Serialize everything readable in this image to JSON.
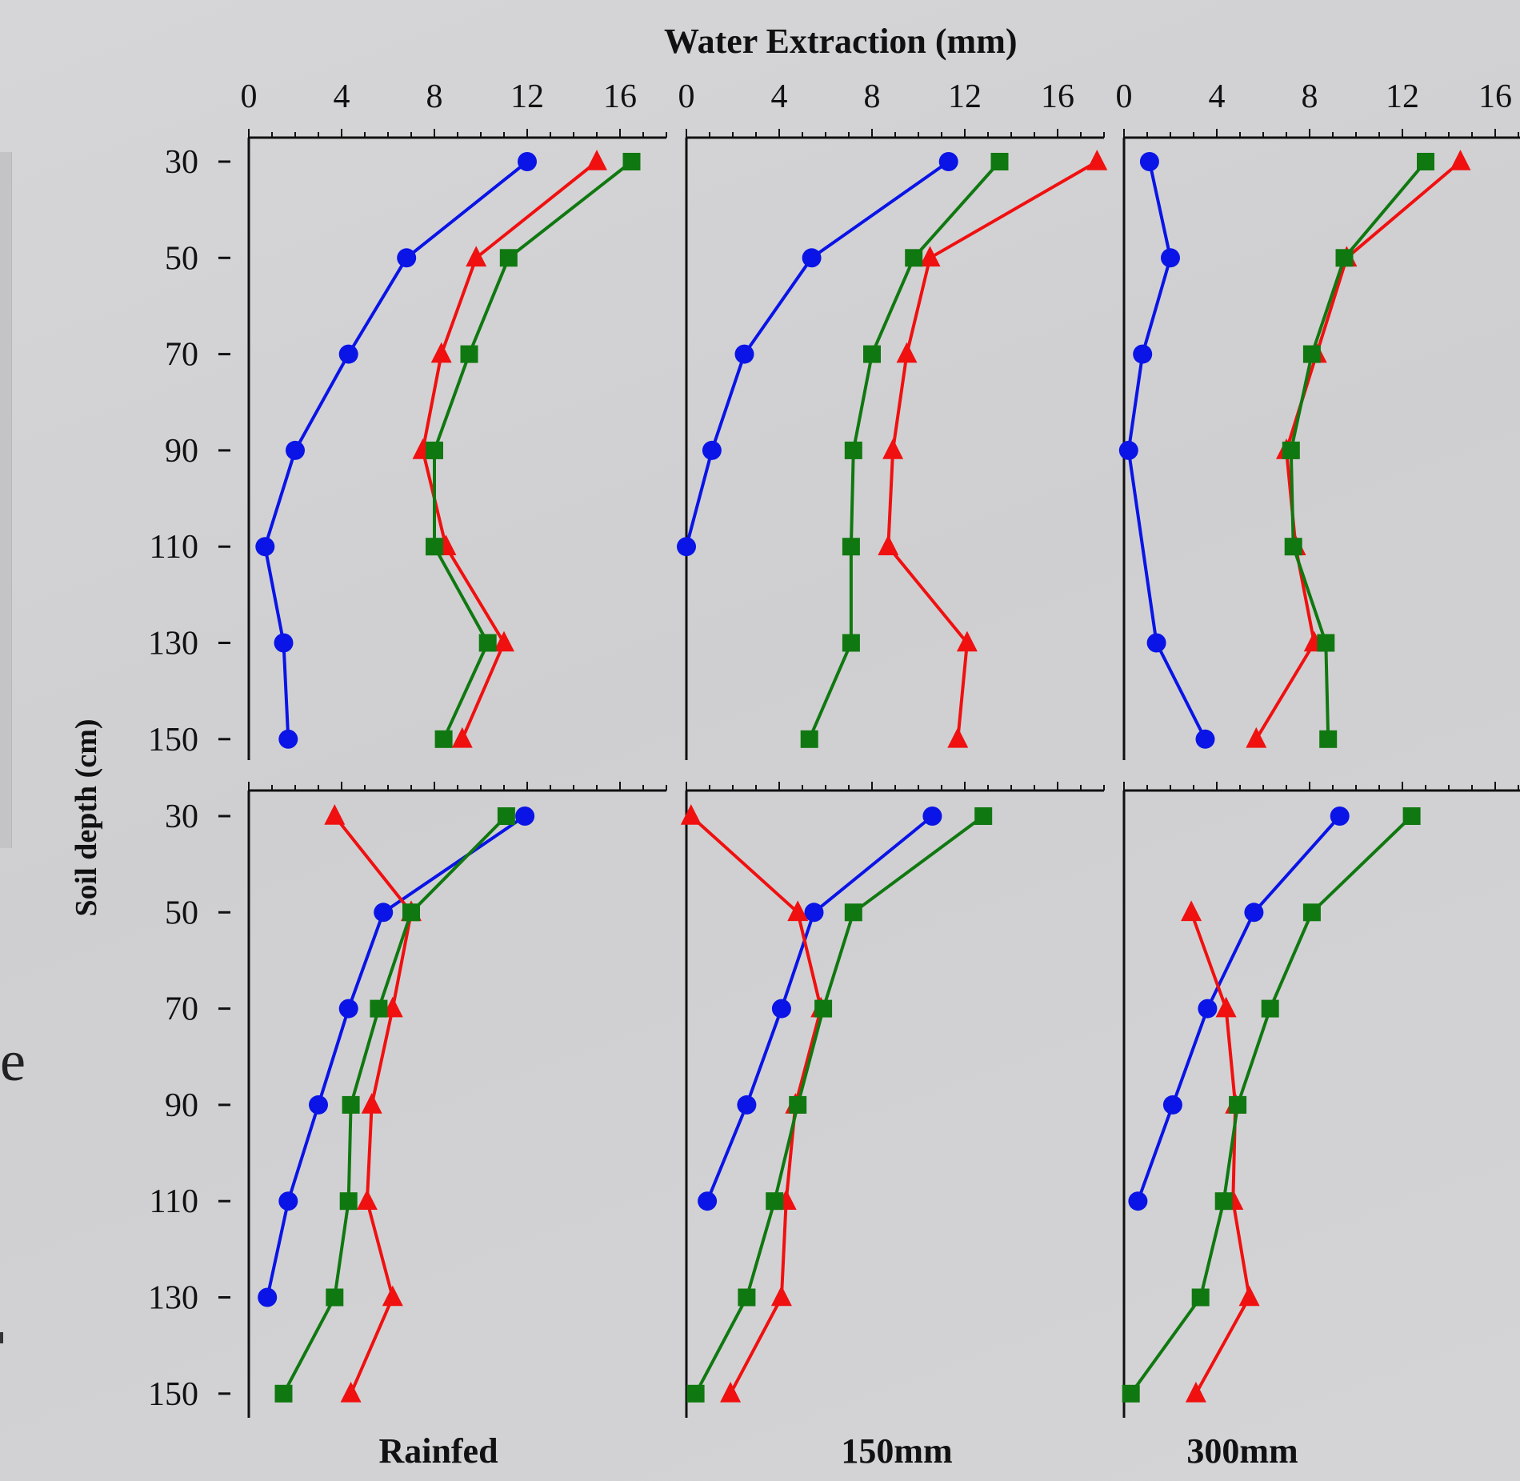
{
  "colors": {
    "blue": "#0a14e6",
    "red": "#f01010",
    "green": "#107810",
    "axis": "#111111"
  },
  "chart_data": {
    "type": "line",
    "title": "",
    "xlabel": "Water Extraction (mm)",
    "ylabel": "Soil depth (cm)",
    "xlim": [
      0,
      18
    ],
    "x_ticks": [
      "0",
      "4",
      "8",
      "12",
      "16"
    ],
    "depths": [
      30,
      50,
      70,
      90,
      110,
      130,
      150
    ],
    "y_ticks": [
      "30",
      "50",
      "70",
      "90",
      "110",
      "130",
      "150"
    ],
    "column_labels": [
      "Rainfed",
      "150mm",
      "300mm"
    ],
    "panels": [
      {
        "row": 0,
        "col": 0,
        "series": [
          {
            "marker": "circle",
            "color": "blue",
            "values": [
              12.0,
              6.8,
              4.3,
              2.0,
              0.7,
              1.5,
              1.7
            ]
          },
          {
            "marker": "triangle",
            "color": "red",
            "values": [
              15.0,
              9.8,
              8.3,
              7.5,
              8.5,
              11.0,
              9.2
            ]
          },
          {
            "marker": "square",
            "color": "green",
            "values": [
              16.5,
              11.2,
              9.5,
              8.0,
              8.0,
              10.3,
              8.4
            ]
          }
        ]
      },
      {
        "row": 0,
        "col": 1,
        "series": [
          {
            "marker": "circle",
            "color": "blue",
            "values": [
              11.3,
              5.4,
              2.5,
              1.1,
              0.0
            ]
          },
          {
            "marker": "triangle",
            "color": "red",
            "values": [
              17.7,
              10.5,
              9.5,
              8.9,
              8.7,
              12.1,
              11.7
            ]
          },
          {
            "marker": "square",
            "color": "green",
            "values": [
              13.5,
              9.8,
              8.0,
              7.2,
              7.1,
              7.1,
              5.3
            ]
          }
        ]
      },
      {
        "row": 0,
        "col": 2,
        "series": [
          {
            "marker": "circle",
            "color": "blue",
            "values": [
              1.1,
              2.0,
              0.8,
              0.2,
              null,
              1.4,
              3.5
            ]
          },
          {
            "marker": "triangle",
            "color": "red",
            "values": [
              14.5,
              9.6,
              8.3,
              7.0,
              7.4,
              8.2,
              5.7
            ]
          },
          {
            "marker": "square",
            "color": "green",
            "values": [
              13.0,
              9.5,
              8.1,
              7.2,
              7.3,
              8.7,
              8.8
            ]
          }
        ]
      },
      {
        "row": 1,
        "col": 0,
        "series": [
          {
            "marker": "circle",
            "color": "blue",
            "values": [
              11.9,
              5.8,
              4.3,
              3.0,
              1.7,
              0.8
            ]
          },
          {
            "marker": "triangle",
            "color": "red",
            "values": [
              3.7,
              7.0,
              6.2,
              5.3,
              5.1,
              6.2,
              4.4
            ]
          },
          {
            "marker": "square",
            "color": "green",
            "values": [
              11.1,
              7.0,
              5.6,
              4.4,
              4.3,
              3.7,
              1.5
            ]
          }
        ]
      },
      {
        "row": 1,
        "col": 1,
        "series": [
          {
            "marker": "circle",
            "color": "blue",
            "values": [
              10.6,
              5.5,
              4.1,
              2.6,
              0.9
            ]
          },
          {
            "marker": "triangle",
            "color": "red",
            "values": [
              0.2,
              4.8,
              5.8,
              4.7,
              4.3,
              4.1,
              1.9
            ]
          },
          {
            "marker": "square",
            "color": "green",
            "values": [
              12.8,
              7.2,
              5.9,
              4.8,
              3.8,
              2.6,
              0.4
            ]
          }
        ]
      },
      {
        "row": 1,
        "col": 2,
        "series": [
          {
            "marker": "circle",
            "color": "blue",
            "values": [
              9.3,
              5.6,
              3.6,
              2.1,
              0.6
            ]
          },
          {
            "marker": "triangle",
            "color": "red",
            "values": [
              null,
              2.9,
              4.4,
              4.8,
              4.7,
              5.4,
              3.1
            ]
          },
          {
            "marker": "square",
            "color": "green",
            "values": [
              12.4,
              8.1,
              6.3,
              4.9,
              4.3,
              3.3,
              0.3
            ]
          }
        ]
      }
    ]
  }
}
